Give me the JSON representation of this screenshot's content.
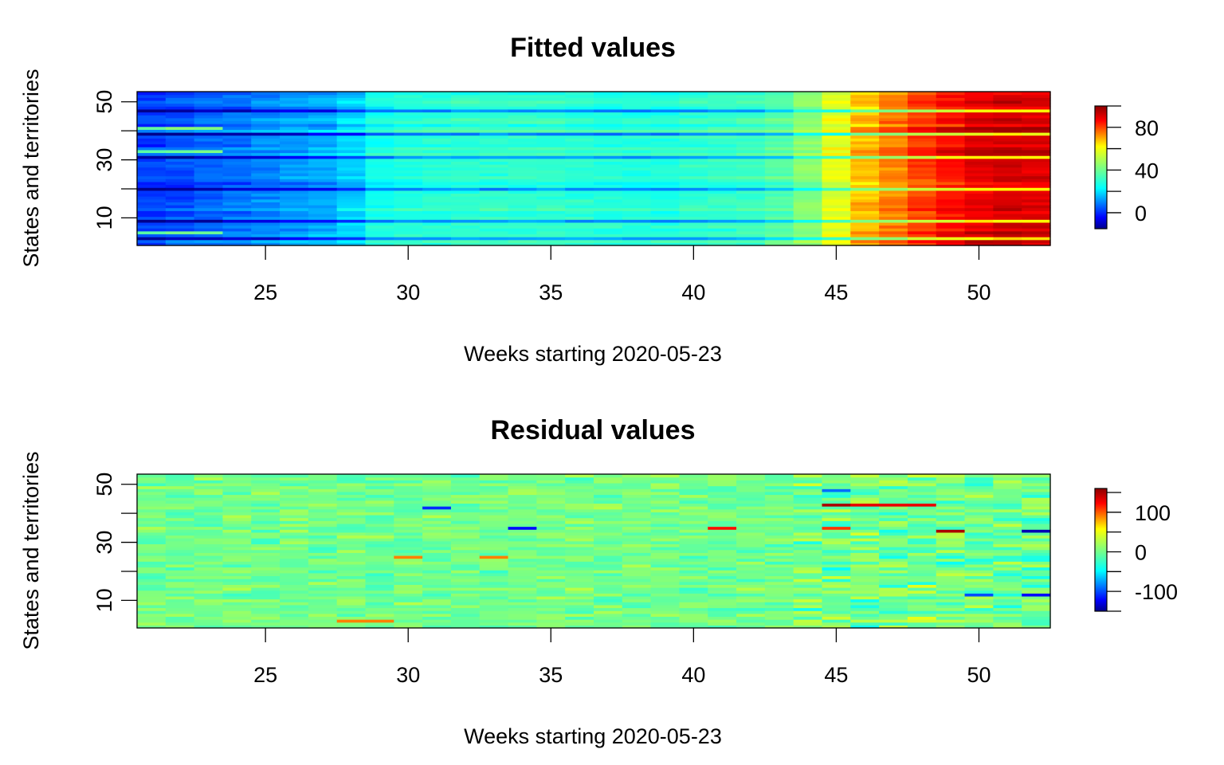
{
  "chart_data": [
    {
      "type": "heatmap",
      "title": "Fitted values",
      "xlabel": "Weeks starting 2020-05-23",
      "ylabel": "States and territories",
      "x_range": [
        21,
        52
      ],
      "y_range": [
        1,
        53
      ],
      "x_ticks": [
        "25",
        "30",
        "35",
        "40",
        "45",
        "50"
      ],
      "y_ticks": [
        "10",
        "30",
        "50"
      ],
      "colorbar": {
        "range": [
          -15,
          100
        ],
        "ticks": [
          "0",
          "40",
          "80"
        ],
        "palette": "jet"
      },
      "weekly_mean": [
        2,
        4,
        6,
        8,
        10,
        12,
        14,
        18,
        26,
        28,
        29,
        30,
        30,
        30,
        30,
        29,
        28,
        28,
        28,
        30,
        31,
        32,
        36,
        44,
        58,
        68,
        74,
        80,
        85,
        89,
        91,
        90
      ],
      "low_rows": [
        3,
        9,
        20,
        31,
        39,
        47
      ],
      "high_rows": [
        5,
        33,
        41
      ]
    },
    {
      "type": "heatmap",
      "title": "Residual values",
      "xlabel": "Weeks starting 2020-05-23",
      "ylabel": "States and territories",
      "x_range": [
        21,
        52
      ],
      "y_range": [
        1,
        53
      ],
      "x_ticks": [
        "25",
        "30",
        "35",
        "40",
        "45",
        "50"
      ],
      "y_ticks": [
        "10",
        "30",
        "50"
      ],
      "colorbar": {
        "range": [
          -150,
          160
        ],
        "ticks": [
          "-100",
          "0",
          "100"
        ],
        "palette": "jet"
      },
      "background": 0,
      "notable_cells": [
        {
          "week": 45,
          "state": 43,
          "value": 150
        },
        {
          "week": 46,
          "state": 43,
          "value": 130
        },
        {
          "week": 47,
          "state": 43,
          "value": 130
        },
        {
          "week": 48,
          "state": 43,
          "value": 130
        },
        {
          "week": 49,
          "state": 34,
          "value": 150
        },
        {
          "week": 52,
          "state": 34,
          "value": -140
        },
        {
          "week": 41,
          "state": 35,
          "value": 120
        },
        {
          "week": 45,
          "state": 35,
          "value": 110
        },
        {
          "week": 34,
          "state": 35,
          "value": -120
        },
        {
          "week": 31,
          "state": 42,
          "value": -110
        },
        {
          "week": 52,
          "state": 12,
          "value": -120
        },
        {
          "week": 50,
          "state": 12,
          "value": -100
        },
        {
          "week": 45,
          "state": 48,
          "value": -90
        },
        {
          "week": 28,
          "state": 3,
          "value": 90
        },
        {
          "week": 29,
          "state": 3,
          "value": 90
        },
        {
          "week": 30,
          "state": 25,
          "value": 90
        },
        {
          "week": 33,
          "state": 25,
          "value": 90
        }
      ]
    }
  ]
}
